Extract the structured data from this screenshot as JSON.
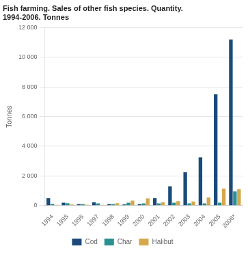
{
  "chart_data": {
    "type": "bar",
    "title": "Fish farming. Sales of other fish species. Quantity.\n1994-2006. Tonnes",
    "ylabel": "Tonnes",
    "categories": [
      "1994",
      "1995",
      "1996",
      "1997",
      "1998",
      "1999",
      "2000",
      "2001",
      "2002",
      "2003",
      "2004",
      "2005",
      "2006*"
    ],
    "series": [
      {
        "name": "Cod",
        "color": "#1a4a7a",
        "values": [
          500,
          200,
          100,
          220,
          100,
          80,
          100,
          500,
          1300,
          2250,
          3250,
          7500,
          11200
        ]
      },
      {
        "name": "Char",
        "color": "#2a9090",
        "values": [
          110,
          160,
          100,
          150,
          100,
          200,
          150,
          150,
          200,
          150,
          150,
          200,
          950
        ]
      },
      {
        "name": "Halibut",
        "color": "#d4a84b",
        "values": [
          50,
          80,
          60,
          50,
          160,
          330,
          480,
          220,
          300,
          280,
          550,
          1150,
          1100
        ]
      }
    ],
    "ylim": [
      0,
      12000
    ],
    "yticks": [
      0,
      {
        "value": 2000,
        "label": "2 000"
      },
      {
        "value": 4000,
        "label": "4 000"
      },
      {
        "value": 6000,
        "label": "6 000"
      },
      {
        "value": 8000,
        "label": "8 000"
      },
      {
        "value": 10000,
        "label": "10 000"
      },
      {
        "value": 12000,
        "label": "12 000"
      }
    ],
    "grid": true,
    "legend": "bottom"
  }
}
